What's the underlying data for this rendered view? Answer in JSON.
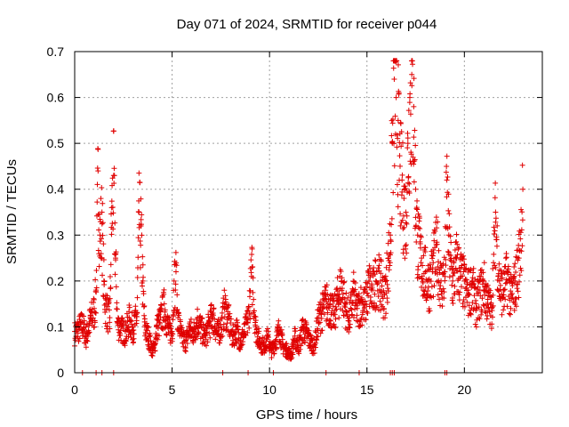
{
  "chart_data": {
    "type": "scatter",
    "title": "Day 071 of 2024, SRMTID for receiver p044",
    "xlabel": "GPS time / hours",
    "ylabel": "SRMTID / TECUs",
    "xlim": [
      0,
      24
    ],
    "ylim": [
      0,
      0.7
    ],
    "xticks": [
      "0",
      "5",
      "10",
      "15",
      "20"
    ],
    "yticks": [
      "0",
      "0.1",
      "0.2",
      "0.3",
      "0.4",
      "0.5",
      "0.6",
      "0.7"
    ],
    "grid": true,
    "marker": "+",
    "series_color": "#e00000",
    "series": [
      {
        "name": "SRMTID",
        "x": [
          0.0,
          0.2,
          0.4,
          0.6,
          0.8,
          1.0,
          1.1,
          1.2,
          1.3,
          1.4,
          1.5,
          1.6,
          1.8,
          1.9,
          2.0,
          2.1,
          2.2,
          2.4,
          2.6,
          2.8,
          3.0,
          3.2,
          3.3,
          3.4,
          3.5,
          3.6,
          3.8,
          4.0,
          4.1,
          4.2,
          4.4,
          4.6,
          4.8,
          5.0,
          5.1,
          5.2,
          5.3,
          5.5,
          5.7,
          5.9,
          6.1,
          6.3,
          6.5,
          6.7,
          6.9,
          7.1,
          7.3,
          7.5,
          7.7,
          7.9,
          8.1,
          8.3,
          8.5,
          8.7,
          8.9,
          9.1,
          9.3,
          9.5,
          9.7,
          9.9,
          10.1,
          10.3,
          10.5,
          10.7,
          10.9,
          11.1,
          11.3,
          11.5,
          11.7,
          11.9,
          12.1,
          12.3,
          12.5,
          12.7,
          12.9,
          13.1,
          13.3,
          13.5,
          13.7,
          13.9,
          14.1,
          14.3,
          14.5,
          14.7,
          14.9,
          15.1,
          15.3,
          15.5,
          15.7,
          15.9,
          16.1,
          16.2,
          16.3,
          16.4,
          16.5,
          16.6,
          16.7,
          16.8,
          16.9,
          17.0,
          17.1,
          17.2,
          17.3,
          17.4,
          17.5,
          17.6,
          17.8,
          18.0,
          18.2,
          18.4,
          18.6,
          18.8,
          19.0,
          19.1,
          19.2,
          19.4,
          19.6,
          19.8,
          20.0,
          20.2,
          20.4,
          20.6,
          20.8,
          21.0,
          21.2,
          21.4,
          21.6,
          21.8,
          22.0,
          22.2,
          22.4,
          22.6,
          22.8,
          23.0
        ],
        "y": [
          0.09,
          0.1,
          0.11,
          0.08,
          0.12,
          0.14,
          0.18,
          0.44,
          0.3,
          0.35,
          0.2,
          0.15,
          0.12,
          0.36,
          0.43,
          0.25,
          0.11,
          0.1,
          0.09,
          0.12,
          0.1,
          0.13,
          0.35,
          0.32,
          0.2,
          0.1,
          0.08,
          0.05,
          0.06,
          0.1,
          0.12,
          0.15,
          0.1,
          0.09,
          0.2,
          0.22,
          0.12,
          0.08,
          0.07,
          0.1,
          0.09,
          0.12,
          0.1,
          0.08,
          0.11,
          0.13,
          0.09,
          0.1,
          0.15,
          0.12,
          0.08,
          0.1,
          0.07,
          0.09,
          0.12,
          0.23,
          0.1,
          0.07,
          0.06,
          0.08,
          0.05,
          0.07,
          0.1,
          0.06,
          0.05,
          0.04,
          0.08,
          0.06,
          0.1,
          0.09,
          0.07,
          0.06,
          0.12,
          0.14,
          0.16,
          0.15,
          0.13,
          0.17,
          0.2,
          0.15,
          0.12,
          0.18,
          0.14,
          0.16,
          0.15,
          0.2,
          0.18,
          0.22,
          0.2,
          0.17,
          0.25,
          0.3,
          0.5,
          0.64,
          0.6,
          0.55,
          0.45,
          0.42,
          0.38,
          0.35,
          0.5,
          0.6,
          0.65,
          0.58,
          0.4,
          0.3,
          0.25,
          0.22,
          0.2,
          0.24,
          0.28,
          0.2,
          0.22,
          0.42,
          0.3,
          0.2,
          0.25,
          0.22,
          0.2,
          0.18,
          0.2,
          0.15,
          0.18,
          0.2,
          0.16,
          0.14,
          0.35,
          0.2,
          0.18,
          0.22,
          0.17,
          0.2,
          0.25,
          0.4
        ]
      }
    ],
    "zero_markers_x": [
      0.4,
      1.1,
      1.4,
      2.0,
      7.6,
      8.9,
      10.2,
      12.9,
      14.6,
      16.2,
      16.3,
      16.4,
      19.0,
      19.1
    ]
  }
}
